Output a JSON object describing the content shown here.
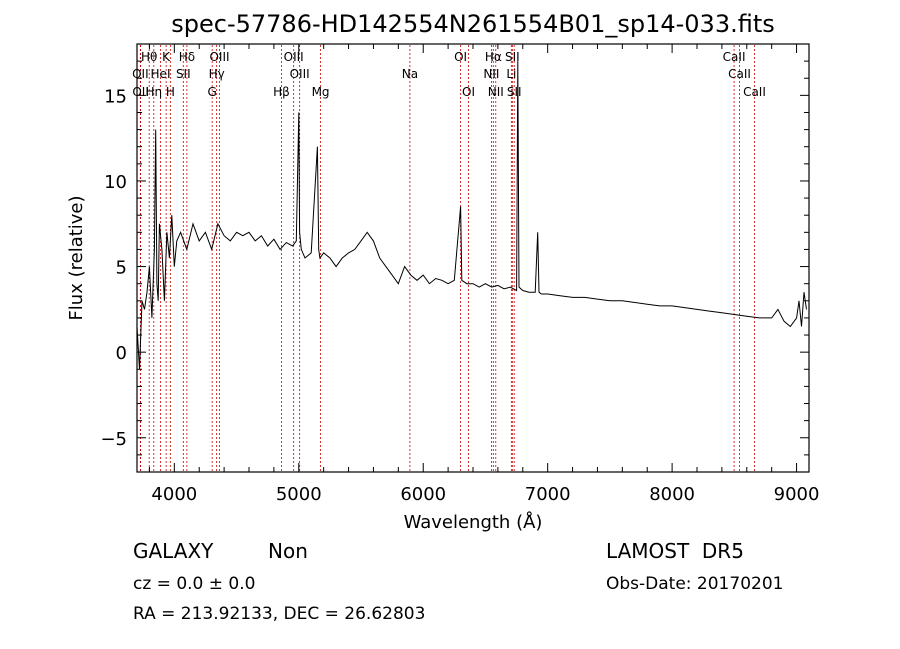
{
  "chart_data": {
    "type": "line",
    "title": "spec-57786-HD142554N261554B01_sp14-033.fits",
    "xlabel": "Wavelength (Å)",
    "ylabel": "Flux (relative)",
    "xlim": [
      3700,
      9100
    ],
    "ylim": [
      -7,
      18
    ],
    "x_ticks": [
      "4000",
      "5000",
      "6000",
      "7000",
      "8000",
      "9000"
    ],
    "y_ticks": [
      "−5",
      "0",
      "5",
      "10",
      "15"
    ],
    "series": [
      {
        "x": [
          3700,
          3720,
          3740,
          3760,
          3780,
          3800,
          3820,
          3840,
          3850,
          3860,
          3870,
          3880,
          3900,
          3920,
          3940,
          3960,
          3980,
          4000,
          4020,
          4050,
          4100,
          4150,
          4200,
          4250,
          4300,
          4350,
          4400,
          4450,
          4500,
          4550,
          4600,
          4650,
          4700,
          4750,
          4800,
          4850,
          4900,
          4950,
          4980,
          5000,
          5007,
          5020,
          5050,
          5100,
          5150,
          5160,
          5170,
          5200,
          5250,
          5300,
          5350,
          5400,
          5450,
          5500,
          5550,
          5600,
          5650,
          5700,
          5750,
          5800,
          5850,
          5900,
          5950,
          6000,
          6050,
          6100,
          6150,
          6200,
          6250,
          6300,
          6310,
          6350,
          6400,
          6450,
          6500,
          6550,
          6600,
          6650,
          6700,
          6750,
          6760,
          6770,
          6800,
          6850,
          6900,
          6920,
          6930,
          6950,
          7000,
          7100,
          7200,
          7300,
          7400,
          7500,
          7600,
          7700,
          7800,
          7900,
          8000,
          8100,
          8200,
          8300,
          8400,
          8500,
          8600,
          8700,
          8800,
          8850,
          8900,
          8950,
          9000,
          9020,
          9040,
          9060,
          9080
        ],
        "y": [
          1.5,
          -1.0,
          3.0,
          2.5,
          3.5,
          5.0,
          2.0,
          6.0,
          13.0,
          4.0,
          3.0,
          7.5,
          6.0,
          3.0,
          7.0,
          5.5,
          8.0,
          5.0,
          6.5,
          7.0,
          6.0,
          7.5,
          6.5,
          7.0,
          6.0,
          7.5,
          6.8,
          6.5,
          7.0,
          6.8,
          7.0,
          6.5,
          6.8,
          6.2,
          6.6,
          6.0,
          6.4,
          6.2,
          6.5,
          14.0,
          7.0,
          6.0,
          5.5,
          5.8,
          12.0,
          6.0,
          5.5,
          5.8,
          5.5,
          5.0,
          5.5,
          5.8,
          6.0,
          6.5,
          7.0,
          6.5,
          5.5,
          5.0,
          4.5,
          4.0,
          5.0,
          4.5,
          4.2,
          4.5,
          4.0,
          4.3,
          4.2,
          4.0,
          4.2,
          8.5,
          4.2,
          4.0,
          4.0,
          3.8,
          4.0,
          3.8,
          3.9,
          3.7,
          3.8,
          3.6,
          17.0,
          3.8,
          3.6,
          3.5,
          3.5,
          7.0,
          3.5,
          3.4,
          3.4,
          3.3,
          3.2,
          3.2,
          3.1,
          3.0,
          3.0,
          2.9,
          2.8,
          2.7,
          2.7,
          2.6,
          2.5,
          2.4,
          2.3,
          2.2,
          2.1,
          2.0,
          2.0,
          2.5,
          1.8,
          1.5,
          2.0,
          3.0,
          1.5,
          3.5,
          2.5
        ]
      }
    ],
    "spectral_lines": [
      {
        "name": "OII",
        "x": 3727,
        "row": 1
      },
      {
        "name": "OII",
        "x": 3729,
        "row": 2
      },
      {
        "name": "Hθ",
        "x": 3798,
        "row": 0
      },
      {
        "name": "Hη",
        "x": 3835,
        "row": 2
      },
      {
        "name": "HeI",
        "x": 3889,
        "row": 1
      },
      {
        "name": "K",
        "x": 3934,
        "row": 0
      },
      {
        "name": "H",
        "x": 3968,
        "row": 2
      },
      {
        "name": "Hδ",
        "x": 4101,
        "row": 0
      },
      {
        "name": "SII",
        "x": 4072,
        "row": 1
      },
      {
        "name": "OIII",
        "x": 4363,
        "row": 0
      },
      {
        "name": "Hγ",
        "x": 4340,
        "row": 1
      },
      {
        "name": "G",
        "x": 4304,
        "row": 2
      },
      {
        "name": "Hβ",
        "x": 4861,
        "row": 2
      },
      {
        "name": "OIII",
        "x": 4959,
        "row": 0
      },
      {
        "name": "OIII",
        "x": 5007,
        "row": 1
      },
      {
        "name": "Mg",
        "x": 5175,
        "row": 2
      },
      {
        "name": "Na",
        "x": 5893,
        "row": 1
      },
      {
        "name": "OI",
        "x": 6300,
        "row": 0
      },
      {
        "name": "OI",
        "x": 6364,
        "row": 2
      },
      {
        "name": "Hα",
        "x": 6563,
        "row": 0
      },
      {
        "name": "NII",
        "x": 6548,
        "row": 1
      },
      {
        "name": "NII",
        "x": 6583,
        "row": 2
      },
      {
        "name": "SII",
        "x": 6716,
        "row": 0
      },
      {
        "name": "Li",
        "x": 6708,
        "row": 1
      },
      {
        "name": "SII",
        "x": 6731,
        "row": 2
      },
      {
        "name": "CaII",
        "x": 8498,
        "row": 0
      },
      {
        "name": "CaII",
        "x": 8542,
        "row": 1
      },
      {
        "name": "CaII",
        "x": 8662,
        "row": 2
      }
    ],
    "annotations": {
      "class": "GALAXY",
      "subclass": "Non",
      "cz": "cz = 0.0 ± 0.0",
      "coords": "RA = 213.92133, DEC =  26.62803",
      "survey": "LAMOST  DR5",
      "obs_date": "Obs-Date: 20170201"
    },
    "grid": false,
    "line_color": "#000000",
    "marker_color": "#cc0000"
  }
}
